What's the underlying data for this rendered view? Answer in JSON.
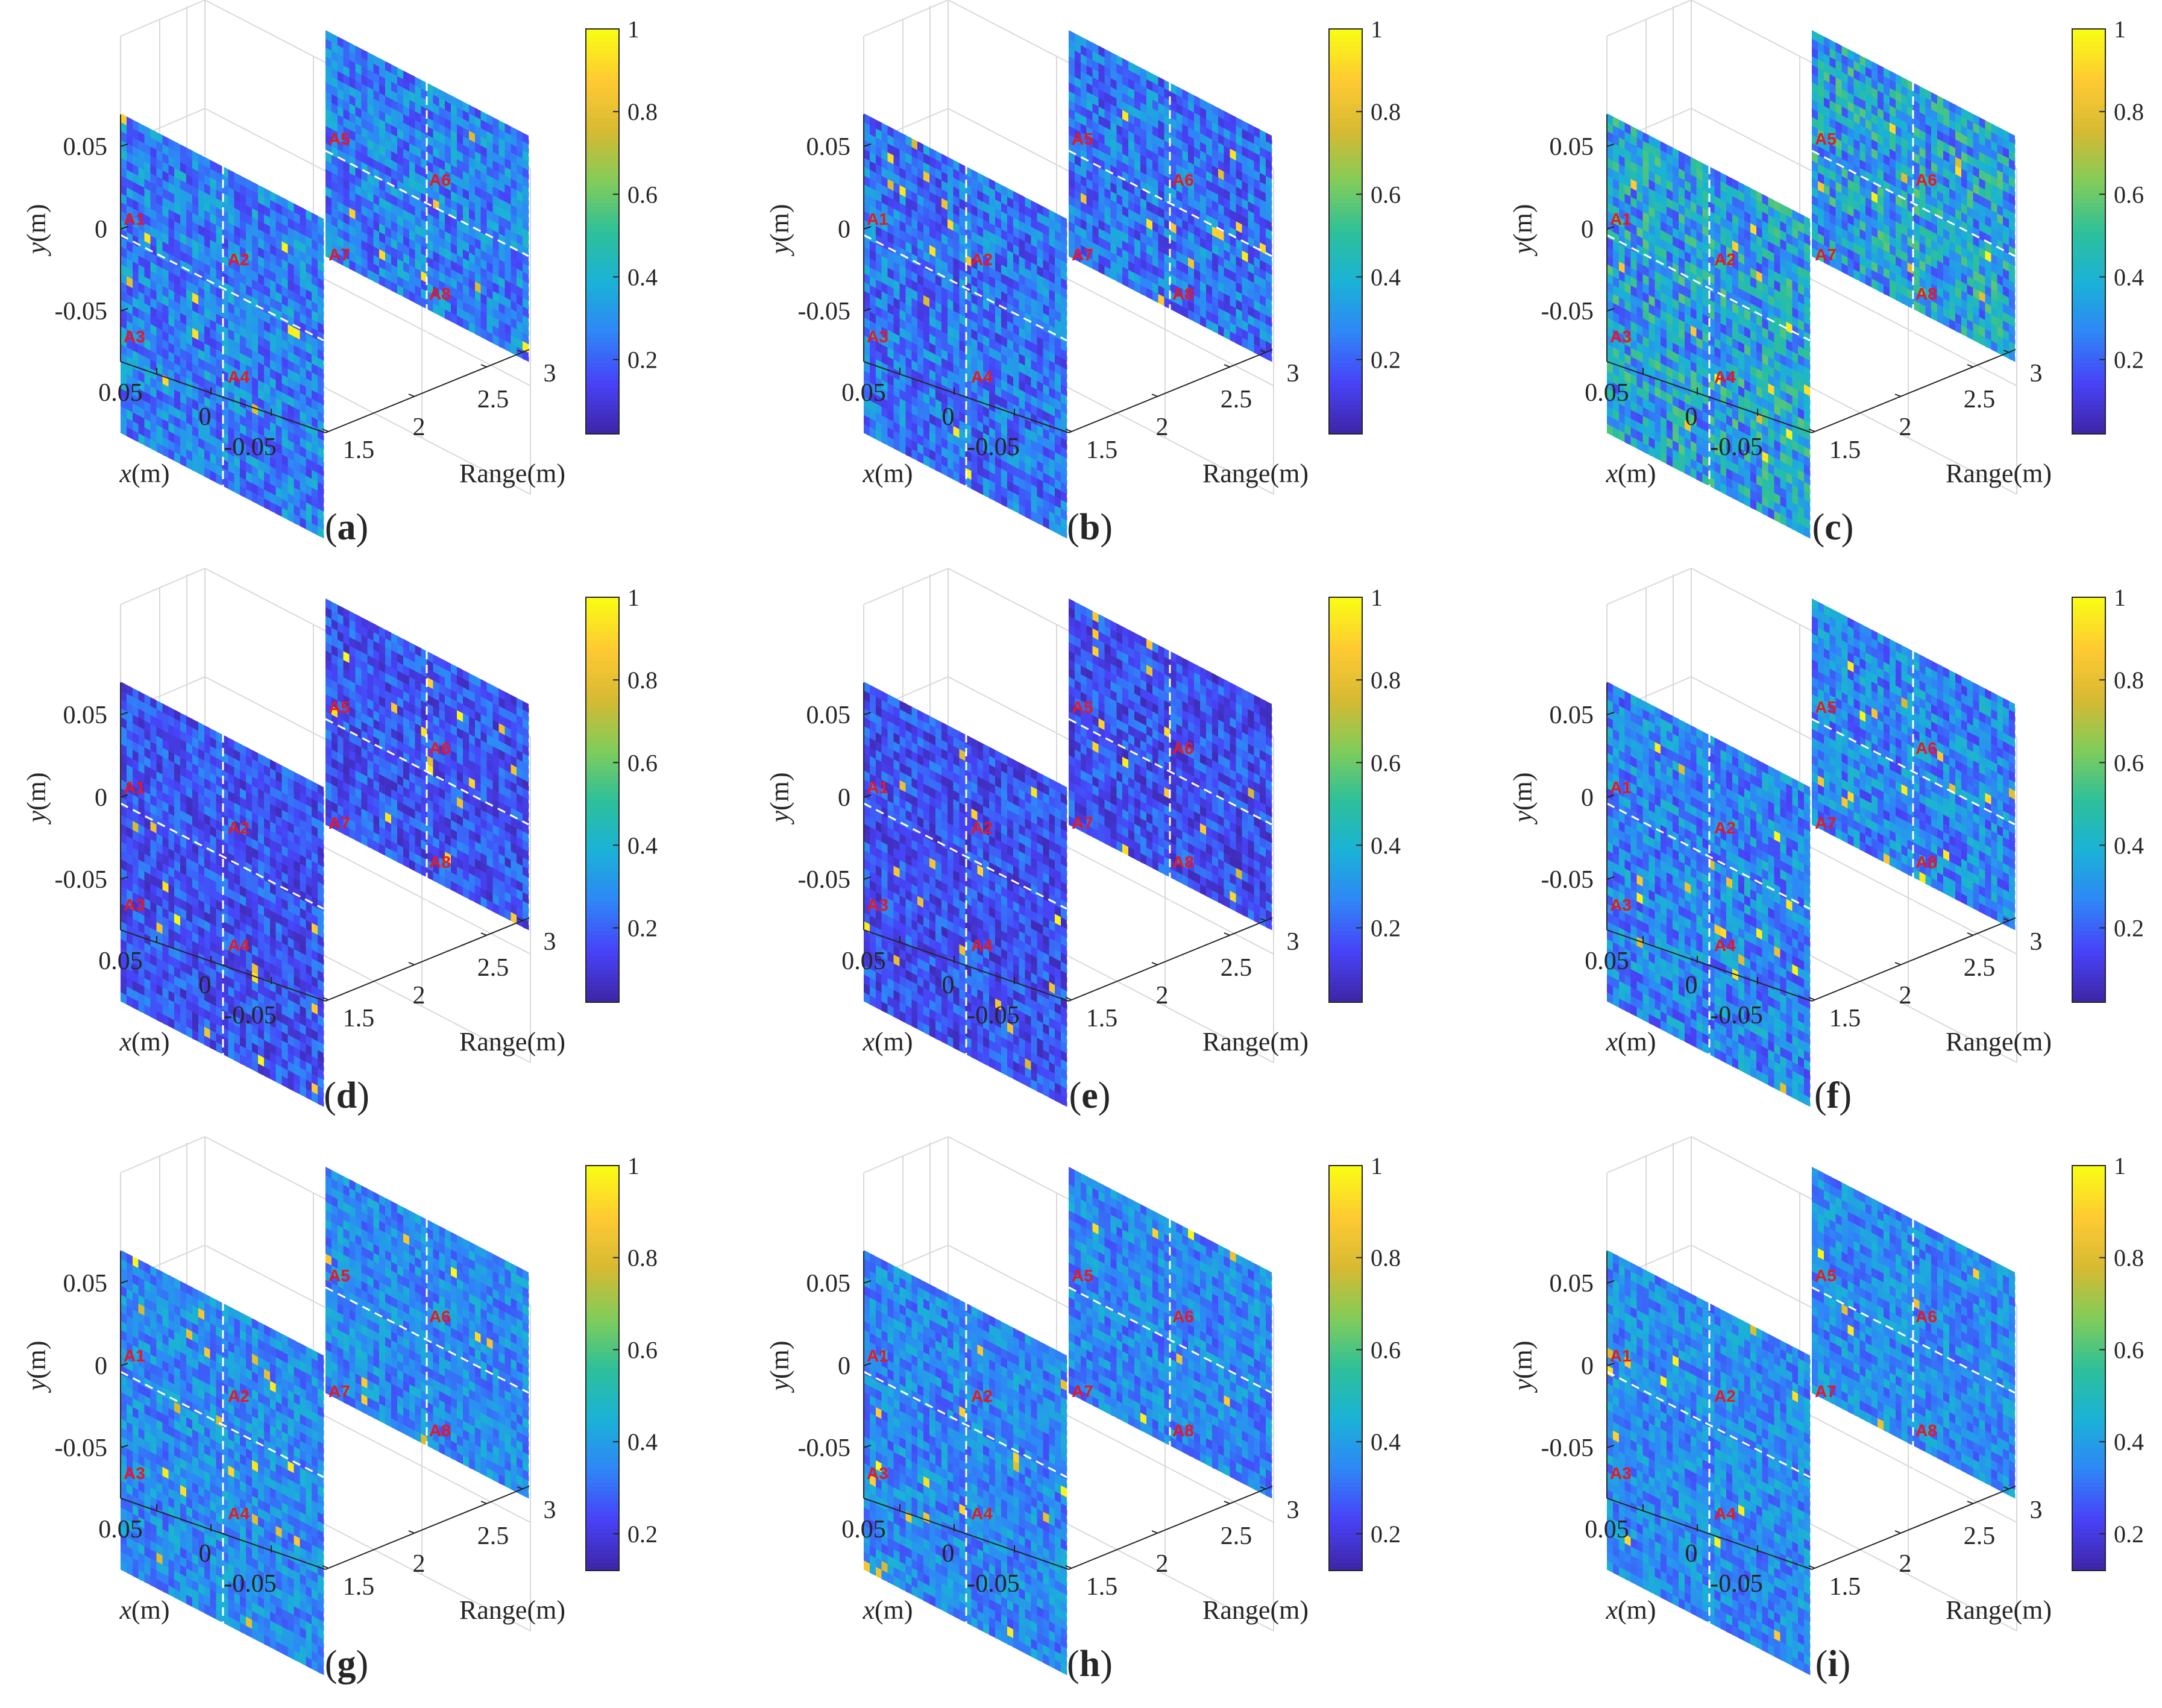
{
  "figure": {
    "colors": {
      "grid": "#d9d9d9",
      "axis": "#262626",
      "marker_text": "#e8191f",
      "dashed_line": "#ffffff",
      "colormap": [
        "#3e26a8",
        "#4743f8",
        "#2e87f7",
        "#1ab2d6",
        "#2ec099",
        "#81cc59",
        "#d6ba32",
        "#fec932",
        "#f9fb15"
      ]
    },
    "common_axes": {
      "y_label_italic": "y",
      "y_label_unit": "(m)",
      "x_label_italic": "x",
      "x_label_unit": "(m)",
      "range_label": "Range(m)",
      "y_ticks": [
        "0.05",
        "0",
        "-0.05"
      ],
      "x_ticks": [
        "0.05",
        "0",
        "-0.05"
      ],
      "range_ticks": [
        "1.5",
        "2",
        "2.5",
        "3"
      ],
      "markers": [
        "A1",
        "A2",
        "A3",
        "A4",
        "A5",
        "A6",
        "A7",
        "A8"
      ]
    }
  },
  "chart_data": [
    {
      "type": "heatmap",
      "panel": "a",
      "caption_open": "(",
      "caption_letter": "a",
      "caption_close": ")",
      "colorbar_ticks": [
        "1",
        "0.8",
        "0.6",
        "0.4",
        "0.2"
      ],
      "colorbar_range": [
        0.02,
        1
      ],
      "noise_level": 0.25,
      "noise_spread": 0.15
    },
    {
      "type": "heatmap",
      "panel": "b",
      "caption_open": "(",
      "caption_letter": "b",
      "caption_close": ")",
      "colorbar_ticks": [
        "1",
        "0.8",
        "0.6",
        "0.4",
        "0.2"
      ],
      "colorbar_range": [
        0.02,
        1
      ],
      "noise_level": 0.22,
      "noise_spread": 0.15
    },
    {
      "type": "heatmap",
      "panel": "c",
      "caption_open": "(",
      "caption_letter": "c",
      "caption_close": ")",
      "colorbar_ticks": [
        "1",
        "0.8",
        "0.6",
        "0.4",
        "0.2"
      ],
      "colorbar_range": [
        0.02,
        1
      ],
      "noise_level": 0.35,
      "noise_spread": 0.22
    },
    {
      "type": "heatmap",
      "panel": "d",
      "caption_open": "(",
      "caption_letter": "d",
      "caption_close": ")",
      "colorbar_ticks": [
        "1",
        "0.8",
        "0.6",
        "0.4",
        "0.2"
      ],
      "colorbar_range": [
        0.02,
        1
      ],
      "noise_level": 0.15,
      "noise_spread": 0.12
    },
    {
      "type": "heatmap",
      "panel": "e",
      "caption_open": "(",
      "caption_letter": "e",
      "caption_close": ")",
      "colorbar_ticks": [
        "1",
        "0.8",
        "0.6",
        "0.4",
        "0.2"
      ],
      "colorbar_range": [
        0.02,
        1
      ],
      "noise_level": 0.14,
      "noise_spread": 0.12
    },
    {
      "type": "heatmap",
      "panel": "f",
      "caption_open": "(",
      "caption_letter": "f",
      "caption_close": ")",
      "colorbar_ticks": [
        "1",
        "0.8",
        "0.6",
        "0.4",
        "0.2"
      ],
      "colorbar_range": [
        0.02,
        1
      ],
      "noise_level": 0.26,
      "noise_spread": 0.15
    },
    {
      "type": "heatmap",
      "panel": "g",
      "caption_open": "(",
      "caption_letter": "g",
      "caption_close": ")",
      "colorbar_ticks": [
        "1",
        "0.8",
        "0.6",
        "0.4",
        "0.2"
      ],
      "colorbar_range": [
        0.12,
        1
      ],
      "noise_level": 0.27,
      "noise_spread": 0.12
    },
    {
      "type": "heatmap",
      "panel": "h",
      "caption_open": "(",
      "caption_letter": "h",
      "caption_close": ")",
      "colorbar_ticks": [
        "1",
        "0.8",
        "0.6",
        "0.4",
        "0.2"
      ],
      "colorbar_range": [
        0.12,
        1
      ],
      "noise_level": 0.26,
      "noise_spread": 0.12
    },
    {
      "type": "heatmap",
      "panel": "i",
      "caption_open": "(",
      "caption_letter": "i",
      "caption_close": ")",
      "colorbar_ticks": [
        "1",
        "0.8",
        "0.6",
        "0.4",
        "0.2"
      ],
      "colorbar_range": [
        0.12,
        1
      ],
      "noise_level": 0.27,
      "noise_spread": 0.12
    }
  ]
}
